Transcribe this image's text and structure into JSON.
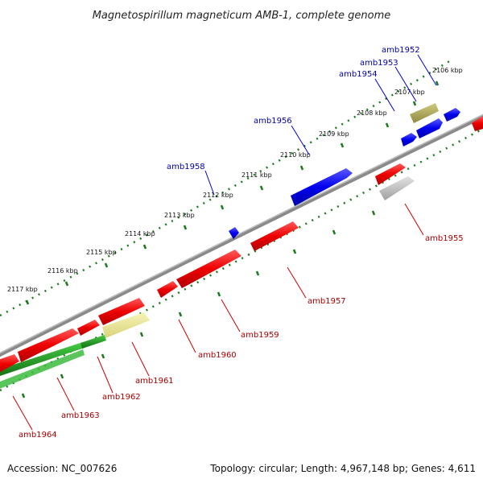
{
  "title": "Magnetospirillum magneticum AMB-1, complete genome",
  "footer": {
    "accession": "Accession: NC_007626",
    "summary": "Topology: circular; Length: 4,967,148 bp; Genes: 4,611"
  },
  "tick_labels": [
    "2106 kbp",
    "2107 kbp",
    "2108 kbp",
    "2109 kbp",
    "2110 kbp",
    "2111 kbp",
    "2112 kbp",
    "2113 kbp",
    "2114 kbp",
    "2115 kbp",
    "2116 kbp",
    "2117 kbp"
  ],
  "top_genes": [
    "amb1952",
    "amb1953",
    "amb1954",
    "amb1956",
    "amb1958"
  ],
  "bottom_genes": [
    "amb1955",
    "amb1957",
    "amb1959",
    "amb1960",
    "amb1961",
    "amb1962",
    "amb1963",
    "amb1964"
  ],
  "colors": {
    "forward_strand": "#0000ee",
    "reverse_strand": "#ee0000",
    "backbone": "#808080",
    "gc_track": "#228b22",
    "pseudo_khaki": "#b5b060",
    "pseudo_pale": "#eeea9a",
    "pseudo_grey": "#c0c0c0",
    "label_top": "#0000aa",
    "label_bottom": "#aa0000"
  }
}
